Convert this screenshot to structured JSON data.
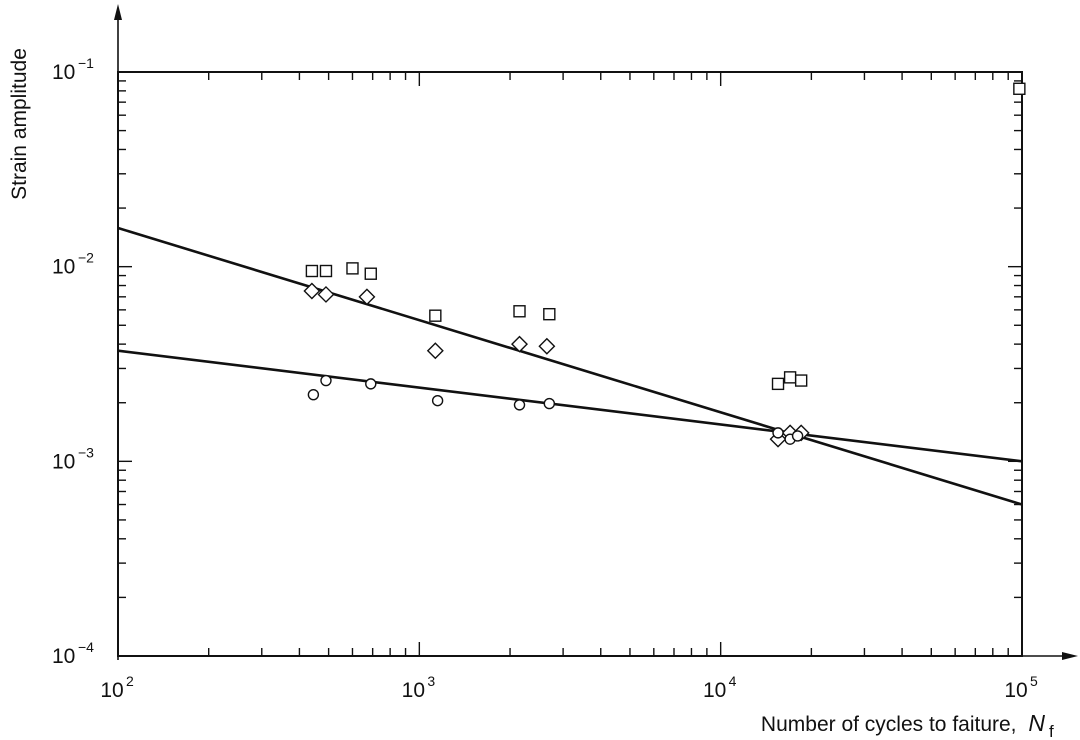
{
  "chart_data": {
    "type": "scatter",
    "ylabel": "Strain amplitude",
    "xlabel_text": "Number of cycles to faiture,",
    "xlabel_symbol": "N",
    "xlabel_subscript": "f",
    "x_scale": "log",
    "y_scale": "log",
    "xlim": [
      100,
      100000
    ],
    "ylim": [
      0.0001,
      0.1
    ],
    "grid": false,
    "legend": "none",
    "x_ticks": [
      {
        "value": 100,
        "base": "10",
        "exp": "2"
      },
      {
        "value": 1000,
        "base": "10",
        "exp": "3"
      },
      {
        "value": 10000,
        "base": "10",
        "exp": "4"
      },
      {
        "value": 100000,
        "base": "10",
        "exp": "5"
      }
    ],
    "y_ticks": [
      {
        "value": 0.0001,
        "base": "10",
        "exp": "−4"
      },
      {
        "value": 0.001,
        "base": "10",
        "exp": "−3"
      },
      {
        "value": 0.01,
        "base": "10",
        "exp": "−2"
      },
      {
        "value": 0.1,
        "base": "10",
        "exp": "−1"
      }
    ],
    "series": [
      {
        "marker": "square",
        "points": [
          [
            440,
            0.0095
          ],
          [
            490,
            0.0095
          ],
          [
            600,
            0.0098
          ],
          [
            690,
            0.0092
          ],
          [
            1130,
            0.0056
          ],
          [
            2150,
            0.0059
          ],
          [
            2700,
            0.0057
          ],
          [
            15500,
            0.0025
          ],
          [
            17000,
            0.0027
          ],
          [
            18500,
            0.0026
          ],
          [
            98000,
            0.082
          ]
        ]
      },
      {
        "marker": "diamond",
        "points": [
          [
            440,
            0.0075
          ],
          [
            490,
            0.0072
          ],
          [
            670,
            0.007
          ],
          [
            1130,
            0.0037
          ],
          [
            2150,
            0.004
          ],
          [
            2650,
            0.0039
          ],
          [
            15500,
            0.0013
          ],
          [
            17000,
            0.0014
          ],
          [
            18500,
            0.0014
          ]
        ]
      },
      {
        "marker": "circle",
        "points": [
          [
            445,
            0.0022
          ],
          [
            490,
            0.0026
          ],
          [
            690,
            0.0025
          ],
          [
            1150,
            0.00205
          ],
          [
            2150,
            0.00195
          ],
          [
            2700,
            0.00198
          ],
          [
            15500,
            0.0014
          ],
          [
            17000,
            0.0013
          ],
          [
            18000,
            0.00135
          ]
        ]
      }
    ],
    "fit_lines": [
      {
        "from": [
          100,
          0.0158
        ],
        "to": [
          100000,
          0.0006
        ]
      },
      {
        "from": [
          100,
          0.0037
        ],
        "to": [
          100000,
          0.001
        ]
      }
    ]
  }
}
